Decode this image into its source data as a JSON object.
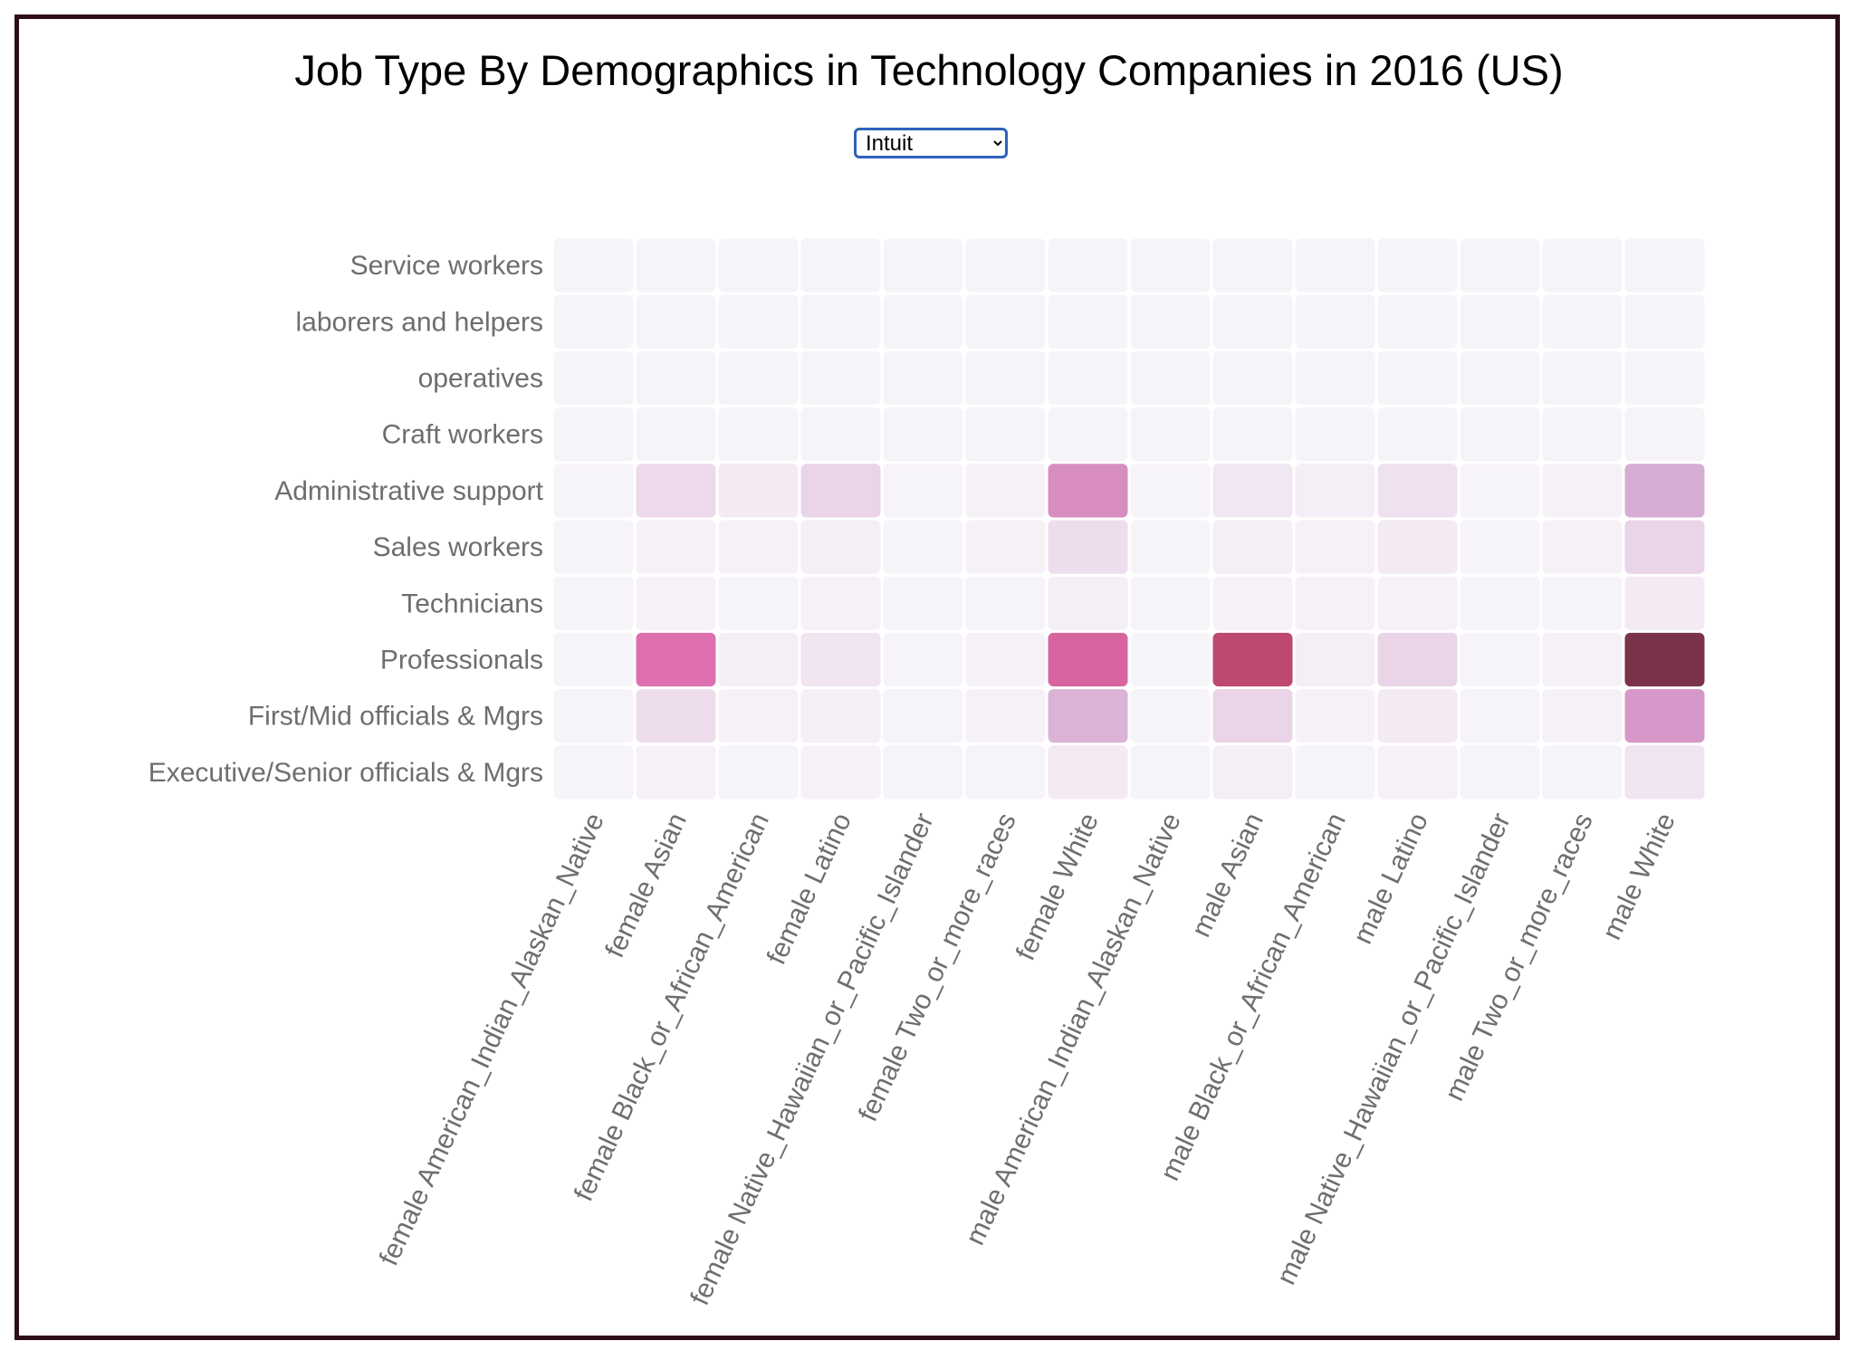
{
  "title": "Job Type By Demographics in Technology Companies in 2016 (US)",
  "company_select": {
    "selected": "Intuit",
    "options": [
      "Intuit"
    ]
  },
  "chart_data": {
    "type": "heatmap",
    "title": "Job Type By Demographics in Technology Companies in 2016 (US)",
    "y_categories": [
      "Service workers",
      "laborers and helpers",
      "operatives",
      "Craft workers",
      "Administrative support",
      "Sales workers",
      "Technicians",
      "Professionals",
      "First/Mid officials & Mgrs",
      "Executive/Senior officials & Mgrs"
    ],
    "x_categories": [
      "female American_Indian_Alaskan_Native",
      "female Asian",
      "female Black_or_African_American",
      "female Latino",
      "female Native_Hawaiian_or_Pacific_Islander",
      "female Two_or_more_races",
      "female White",
      "male American_Indian_Alaskan_Native",
      "male Asian",
      "male Black_or_African_American",
      "male Latino",
      "male Native_Hawaiian_or_Pacific_Islander",
      "male Two_or_more_races",
      "male White"
    ],
    "values": [
      [
        0,
        0,
        0,
        0,
        0,
        0,
        0,
        0,
        0,
        0,
        0,
        0,
        0,
        0
      ],
      [
        0,
        0,
        0,
        0,
        0,
        0,
        0,
        0,
        0,
        0,
        0,
        0,
        0,
        0
      ],
      [
        0,
        0,
        0,
        0,
        0,
        0,
        0,
        0,
        0,
        0,
        0,
        0,
        0,
        0
      ],
      [
        0,
        0,
        0,
        0,
        0,
        0,
        0,
        0,
        0,
        0,
        0,
        0,
        0,
        0
      ],
      [
        0,
        0.08,
        0.03,
        0.1,
        0,
        0.01,
        0.35,
        0,
        0.04,
        0.02,
        0.06,
        0,
        0.01,
        0.22
      ],
      [
        0,
        0.01,
        0.01,
        0.02,
        0,
        0.01,
        0.07,
        0,
        0.02,
        0.01,
        0.03,
        0,
        0.01,
        0.1
      ],
      [
        0,
        0.01,
        0,
        0.01,
        0,
        0,
        0.02,
        0,
        0.01,
        0.01,
        0.01,
        0,
        0,
        0.03
      ],
      [
        0,
        0.48,
        0.02,
        0.05,
        0,
        0.01,
        0.55,
        0,
        0.72,
        0.02,
        0.1,
        0,
        0.01,
        1.0
      ],
      [
        0,
        0.07,
        0.01,
        0.02,
        0,
        0.01,
        0.2,
        0,
        0.1,
        0.01,
        0.03,
        0,
        0.01,
        0.3
      ],
      [
        0,
        0.01,
        0,
        0.01,
        0,
        0,
        0.03,
        0,
        0.02,
        0,
        0.01,
        0,
        0,
        0.05
      ]
    ],
    "color_scale": [
      "#f7f4f9",
      "#d4a3cf",
      "#df6cac",
      "#b84468",
      "#7a3349"
    ],
    "grid": false,
    "legend": "none"
  }
}
